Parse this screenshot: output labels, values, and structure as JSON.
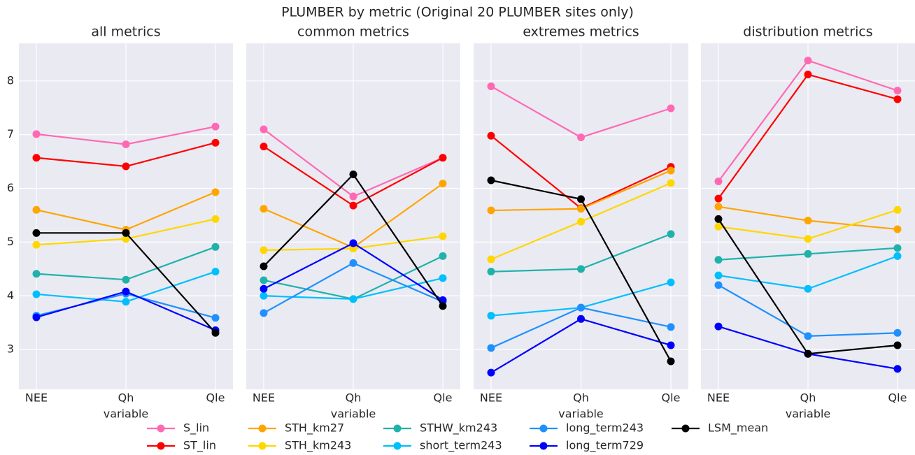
{
  "title": "PLUMBER by metric (Original 20 PLUMBER sites only)",
  "chart_data": [
    {
      "type": "line",
      "title": "all metrics",
      "xlabel": "variable",
      "categories": [
        "NEE",
        "Qh",
        "Qle"
      ],
      "ylim": [
        2.26,
        8.7
      ],
      "yticks": [
        3,
        4,
        5,
        6,
        7,
        8
      ],
      "grid": true,
      "series": [
        {
          "name": "S_lin",
          "color": "#ff69b4",
          "values": [
            7.01,
            6.82,
            7.15
          ]
        },
        {
          "name": "ST_lin",
          "color": "#ff0000",
          "values": [
            6.57,
            6.41,
            6.85
          ]
        },
        {
          "name": "STH_km27",
          "color": "#ffa500",
          "values": [
            5.6,
            5.23,
            5.93
          ]
        },
        {
          "name": "STH_km243",
          "color": "#ffd700",
          "values": [
            4.95,
            5.06,
            5.43
          ]
        },
        {
          "name": "STHW_km243",
          "color": "#20b2aa",
          "values": [
            4.41,
            4.3,
            4.91
          ]
        },
        {
          "name": "short_term243",
          "color": "#00bfff",
          "values": [
            4.03,
            3.89,
            4.45
          ]
        },
        {
          "name": "long_term243",
          "color": "#1e90ff",
          "values": [
            3.63,
            4.04,
            3.59
          ]
        },
        {
          "name": "long_term729",
          "color": "#0000ff",
          "values": [
            3.6,
            4.08,
            3.36
          ]
        },
        {
          "name": "LSM_mean",
          "color": "#000000",
          "values": [
            5.17,
            5.17,
            3.31
          ]
        }
      ]
    },
    {
      "type": "line",
      "title": "common metrics",
      "xlabel": "variable",
      "categories": [
        "NEE",
        "Qh",
        "Qle"
      ],
      "ylim": [
        2.26,
        8.7
      ],
      "yticks": [
        3,
        4,
        5,
        6,
        7,
        8
      ],
      "grid": true,
      "series": [
        {
          "name": "S_lin",
          "color": "#ff69b4",
          "values": [
            7.1,
            5.85,
            6.57
          ]
        },
        {
          "name": "ST_lin",
          "color": "#ff0000",
          "values": [
            6.78,
            5.68,
            6.57
          ]
        },
        {
          "name": "STH_km27",
          "color": "#ffa500",
          "values": [
            5.62,
            4.9,
            6.09
          ]
        },
        {
          "name": "STH_km243",
          "color": "#ffd700",
          "values": [
            4.85,
            4.88,
            5.11
          ]
        },
        {
          "name": "STHW_km243",
          "color": "#20b2aa",
          "values": [
            4.29,
            3.94,
            4.74
          ]
        },
        {
          "name": "short_term243",
          "color": "#00bfff",
          "values": [
            4.0,
            3.94,
            4.33
          ]
        },
        {
          "name": "long_term243",
          "color": "#1e90ff",
          "values": [
            3.68,
            4.61,
            3.89
          ]
        },
        {
          "name": "long_term729",
          "color": "#0000ff",
          "values": [
            4.13,
            4.98,
            3.92
          ]
        },
        {
          "name": "LSM_mean",
          "color": "#000000",
          "values": [
            4.55,
            6.26,
            3.81
          ]
        }
      ]
    },
    {
      "type": "line",
      "title": "extremes metrics",
      "xlabel": "variable",
      "categories": [
        "NEE",
        "Qh",
        "Qle"
      ],
      "ylim": [
        2.26,
        8.7
      ],
      "yticks": [
        3,
        4,
        5,
        6,
        7,
        8
      ],
      "grid": true,
      "series": [
        {
          "name": "S_lin",
          "color": "#ff69b4",
          "values": [
            7.9,
            6.95,
            7.49
          ]
        },
        {
          "name": "ST_lin",
          "color": "#ff0000",
          "values": [
            6.98,
            5.63,
            6.4
          ]
        },
        {
          "name": "STH_km27",
          "color": "#ffa500",
          "values": [
            5.59,
            5.62,
            6.33
          ]
        },
        {
          "name": "STH_km243",
          "color": "#ffd700",
          "values": [
            4.68,
            5.38,
            6.1
          ]
        },
        {
          "name": "STHW_km243",
          "color": "#20b2aa",
          "values": [
            4.45,
            4.5,
            5.15
          ]
        },
        {
          "name": "short_term243",
          "color": "#00bfff",
          "values": [
            3.63,
            3.78,
            4.25
          ]
        },
        {
          "name": "long_term243",
          "color": "#1e90ff",
          "values": [
            3.03,
            3.78,
            3.42
          ]
        },
        {
          "name": "long_term729",
          "color": "#0000ff",
          "values": [
            2.57,
            3.57,
            3.08
          ]
        },
        {
          "name": "LSM_mean",
          "color": "#000000",
          "values": [
            6.15,
            5.8,
            2.78
          ]
        }
      ]
    },
    {
      "type": "line",
      "title": "distribution metrics",
      "xlabel": "variable",
      "categories": [
        "NEE",
        "Qh",
        "Qle"
      ],
      "ylim": [
        2.26,
        8.7
      ],
      "yticks": [
        3,
        4,
        5,
        6,
        7,
        8
      ],
      "grid": true,
      "series": [
        {
          "name": "S_lin",
          "color": "#ff69b4",
          "values": [
            6.13,
            8.38,
            7.82
          ]
        },
        {
          "name": "ST_lin",
          "color": "#ff0000",
          "values": [
            5.81,
            8.12,
            7.66
          ]
        },
        {
          "name": "STH_km27",
          "color": "#ffa500",
          "values": [
            5.66,
            5.4,
            5.24
          ]
        },
        {
          "name": "STH_km243",
          "color": "#ffd700",
          "values": [
            5.29,
            5.06,
            5.6
          ]
        },
        {
          "name": "STHW_km243",
          "color": "#20b2aa",
          "values": [
            4.67,
            4.78,
            4.89
          ]
        },
        {
          "name": "short_term243",
          "color": "#00bfff",
          "values": [
            4.38,
            4.13,
            4.74
          ]
        },
        {
          "name": "long_term243",
          "color": "#1e90ff",
          "values": [
            4.2,
            3.25,
            3.31
          ]
        },
        {
          "name": "long_term729",
          "color": "#0000ff",
          "values": [
            3.43,
            2.92,
            2.64
          ]
        },
        {
          "name": "LSM_mean",
          "color": "#000000",
          "values": [
            5.43,
            2.92,
            3.08
          ]
        }
      ]
    }
  ]
}
